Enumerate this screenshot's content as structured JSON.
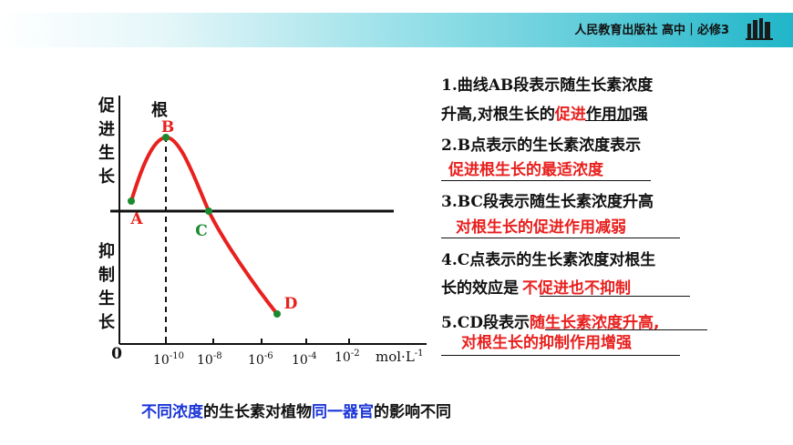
{
  "header": {
    "publisher": "人民教育出版社 高中｜必修3",
    "icon": "books-icon"
  },
  "chart": {
    "y_top_label": "促进生长",
    "y_bottom_label": "抑制生长",
    "organ_label": "根",
    "origin_label": "0",
    "unit_label": "mol·L",
    "unit_exp": "-1",
    "points": [
      {
        "label": "A",
        "color": "#e8201e"
      },
      {
        "label": "B",
        "color": "#e8201e"
      },
      {
        "label": "C",
        "color": "#1b8a2e"
      },
      {
        "label": "D",
        "color": "#e8201e"
      }
    ],
    "ticks": [
      {
        "base": "10",
        "exp": "-10"
      },
      {
        "base": "10",
        "exp": "-8"
      },
      {
        "base": "10",
        "exp": "-6"
      },
      {
        "base": "10",
        "exp": "-4"
      },
      {
        "base": "10",
        "exp": "-2"
      }
    ],
    "curve_color": "#e8201e"
  },
  "statements": {
    "s1_line1": "1.曲线AB段表示随生长素浓度",
    "s1_line2_a": "升高,对根生长的",
    "s1_answer": "促进",
    "s1_line2_b": "作用加强",
    "s2_line1": "2.B点表示的生长素浓度表示",
    "s2_answer": "促进根生长的最适浓度",
    "s3_line1": "3.BC段表示随生长素浓度升高",
    "s3_answer": "对根生长的促进作用减弱",
    "s4_line1": "4.C点表示的生长素浓度对根生",
    "s4_line2_a": "长的效应是",
    "s4_answer": "不促进也不抑制",
    "s5_line1_a": "5.CD段表示",
    "s5_answer_a": "随生长素浓度升高,",
    "s5_answer_b": "对根生长的抑制作用增强"
  },
  "bottom": {
    "part1": "不同浓度",
    "part2": "的生长素对植物",
    "part3": "同一器官",
    "part4": "的影响不同"
  }
}
